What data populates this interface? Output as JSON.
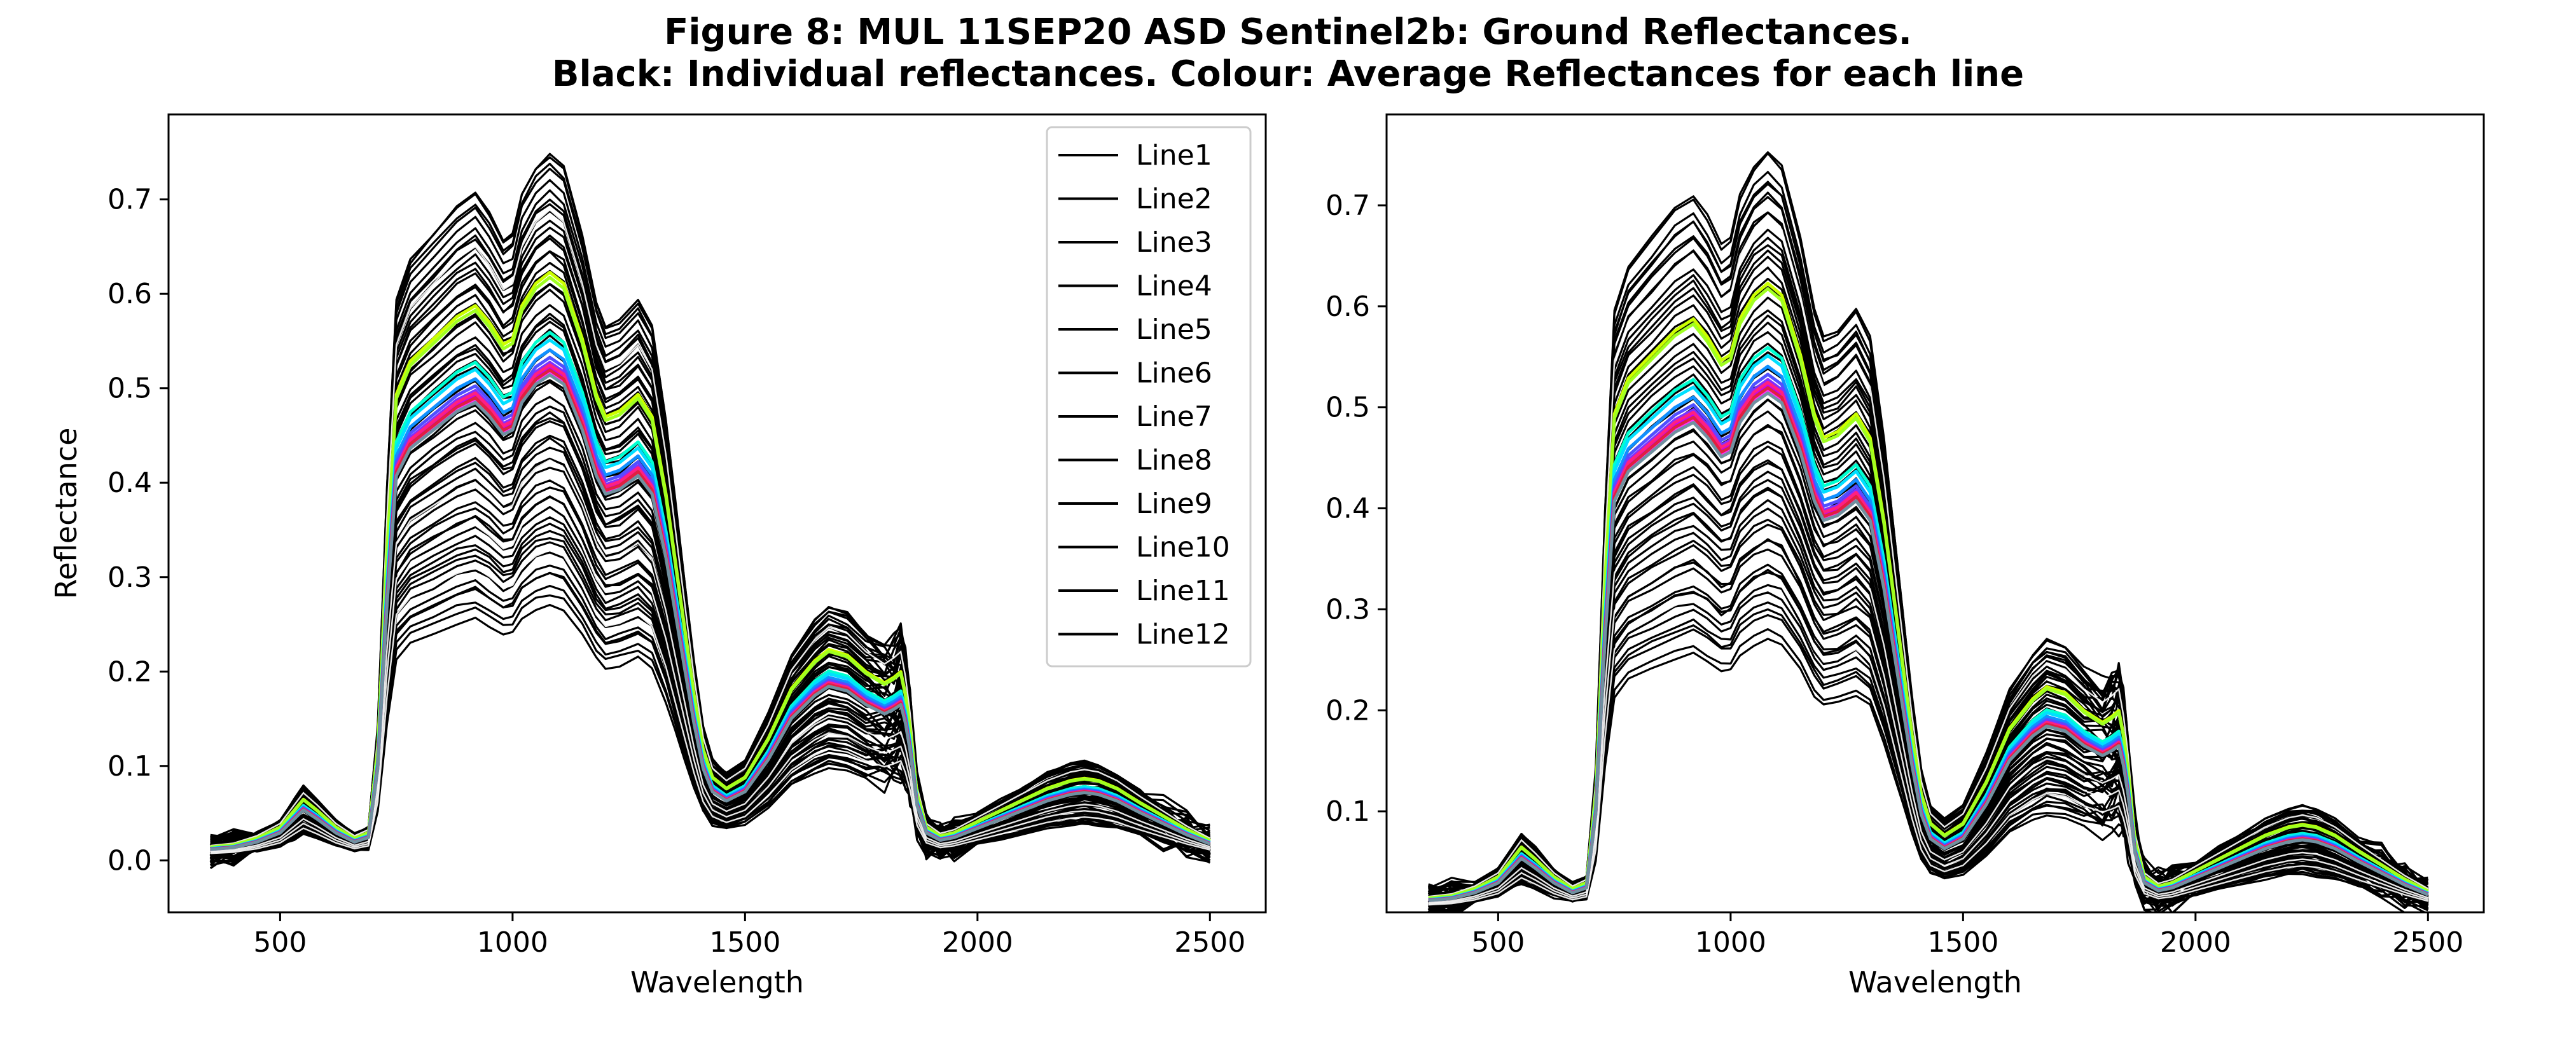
{
  "figure": {
    "title_line1": "Figure 8: MUL 11SEP20 ASD Sentinel2b: Ground Reflectances.",
    "title_line2": "Black: Individual reflectances. Colour: Average Reflectances for each line"
  },
  "chart_data": [
    {
      "type": "line",
      "panel": "left",
      "xlabel": "Wavelength",
      "ylabel": "Reflectance",
      "xlim": [
        260,
        2620
      ],
      "ylim": [
        -0.055,
        0.79
      ],
      "xticks": [
        500,
        1000,
        1500,
        2000,
        2500
      ],
      "yticks": [
        0.0,
        0.1,
        0.2,
        0.3,
        0.4,
        0.5,
        0.6,
        0.7
      ],
      "xtick_labels": [
        "500",
        "1000",
        "1500",
        "2000",
        "2500"
      ],
      "ytick_labels": [
        "0.0",
        "0.1",
        "0.2",
        "0.3",
        "0.4",
        "0.5",
        "0.6",
        "0.7"
      ],
      "legend": {
        "placement": "top-right",
        "entries": [
          "Line1",
          "Line2",
          "Line3",
          "Line4",
          "Line5",
          "Line6",
          "Line7",
          "Line8",
          "Line9",
          "Line10",
          "Line11",
          "Line12"
        ],
        "color": "#000000"
      },
      "individual_count": 60,
      "individual_color": "#000000",
      "individual_scale_range": [
        0.52,
        1.42
      ]
    },
    {
      "type": "line",
      "panel": "right",
      "xlabel": "Wavelength",
      "ylabel": "",
      "xlim": [
        260,
        2620
      ],
      "ylim": [
        0.0,
        0.79
      ],
      "xticks": [
        500,
        1000,
        1500,
        2000,
        2500
      ],
      "yticks": [
        0.1,
        0.2,
        0.3,
        0.4,
        0.5,
        0.6,
        0.7
      ],
      "xtick_labels": [
        "500",
        "1000",
        "1500",
        "2000",
        "2500"
      ],
      "ytick_labels": [
        "0.1",
        "0.2",
        "0.3",
        "0.4",
        "0.5",
        "0.6",
        "0.7"
      ],
      "individual_count": 60,
      "individual_color": "#000000",
      "individual_scale_range": [
        0.52,
        1.42
      ]
    }
  ],
  "spectrum": {
    "wavelengths": [
      350,
      400,
      450,
      500,
      530,
      550,
      580,
      620,
      660,
      690,
      710,
      730,
      750,
      780,
      830,
      880,
      920,
      950,
      980,
      1000,
      1020,
      1050,
      1080,
      1110,
      1150,
      1180,
      1200,
      1230,
      1270,
      1300,
      1330,
      1350,
      1370,
      1390,
      1410,
      1430,
      1460,
      1500,
      1550,
      1600,
      1650,
      1680,
      1720,
      1760,
      1800,
      1820,
      1835,
      1845,
      1855,
      1870,
      1890,
      1920,
      1950,
      2000,
      2050,
      2100,
      2150,
      2200,
      2230,
      2260,
      2300,
      2350,
      2400,
      2450,
      2500
    ],
    "mean_reflectance": [
      0.012,
      0.014,
      0.02,
      0.03,
      0.045,
      0.055,
      0.045,
      0.03,
      0.02,
      0.025,
      0.1,
      0.28,
      0.42,
      0.45,
      0.47,
      0.49,
      0.5,
      0.485,
      0.465,
      0.47,
      0.5,
      0.52,
      0.53,
      0.52,
      0.47,
      0.42,
      0.4,
      0.405,
      0.42,
      0.4,
      0.33,
      0.27,
      0.21,
      0.15,
      0.1,
      0.075,
      0.065,
      0.075,
      0.11,
      0.155,
      0.18,
      0.19,
      0.185,
      0.17,
      0.16,
      0.165,
      0.17,
      0.15,
      0.12,
      0.06,
      0.03,
      0.022,
      0.025,
      0.035,
      0.045,
      0.055,
      0.065,
      0.072,
      0.074,
      0.072,
      0.065,
      0.052,
      0.04,
      0.028,
      0.018
    ]
  },
  "average_lines": [
    {
      "name": "Line1",
      "color": "#ccff00",
      "scale": 1.175
    },
    {
      "name": "Line2",
      "color": "#a0ff20",
      "scale": 1.165
    },
    {
      "name": "Line3",
      "color": "#00ffd0",
      "scale": 1.055
    },
    {
      "name": "Line4",
      "color": "#00e0ff",
      "scale": 1.04
    },
    {
      "name": "Line5",
      "color": "#1090ff",
      "scale": 1.02
    },
    {
      "name": "Line6",
      "color": "#5050ff",
      "scale": 1.005
    },
    {
      "name": "Line7",
      "color": "#8030ff",
      "scale": 0.995
    },
    {
      "name": "Line8",
      "color": "#c000ff",
      "scale": 0.985
    },
    {
      "name": "Line9",
      "color": "#ff30ff",
      "scale": 0.975
    },
    {
      "name": "Line10",
      "color": "#ff2080",
      "scale": 0.99
    },
    {
      "name": "Line11",
      "color": "#e02040",
      "scale": 0.98
    },
    {
      "name": "Line12",
      "color": "#7090a0",
      "scale": 0.97
    }
  ]
}
